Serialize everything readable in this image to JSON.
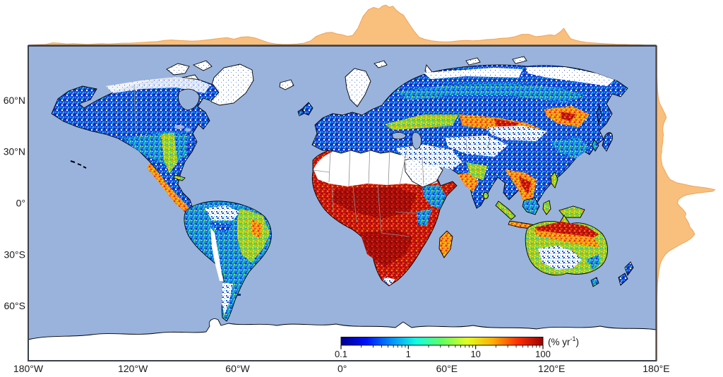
{
  "figure": {
    "type": "global raster map with marginal distribution curves",
    "background_color": "#ffffff"
  },
  "map": {
    "projection": "equirectangular",
    "lon_range": [
      -180,
      180
    ],
    "lat_range": [
      -90,
      90
    ],
    "ocean_color": "#99b3dd",
    "nodata_land_color": "#ffffff",
    "coastline_color": "#000000",
    "country_border_color": "#8f8f8f",
    "frame_color": "#39404c"
  },
  "axes": {
    "lon_ticks": [
      {
        "lon": -180,
        "label": "180°W"
      },
      {
        "lon": -120,
        "label": "120°W"
      },
      {
        "lon": -60,
        "label": "60°W"
      },
      {
        "lon": 0,
        "label": "0°"
      },
      {
        "lon": 60,
        "label": "60°E"
      },
      {
        "lon": 120,
        "label": "120°E"
      },
      {
        "lon": 180,
        "label": "180°E"
      }
    ],
    "lat_ticks": [
      {
        "lat": 60,
        "label": "60°N"
      },
      {
        "lat": 30,
        "label": "30°N"
      },
      {
        "lat": 0,
        "label": "0°"
      },
      {
        "lat": -30,
        "label": "30°S"
      },
      {
        "lat": -60,
        "label": "60°S"
      }
    ]
  },
  "colorbar": {
    "scale": "log",
    "min": 0.1,
    "max": 100,
    "major_ticks": [
      0.1,
      1,
      10,
      100
    ],
    "major_tick_labels": [
      "0.1",
      "1",
      "10",
      "100"
    ],
    "minor_tick_decades": [
      0.1,
      1,
      10
    ],
    "unit_base": "(% yr",
    "unit_exponent": "-1",
    "unit_close": ")",
    "colormap": "jet",
    "gradient": [
      "#00008f",
      "#0010ff",
      "#0090ff",
      "#10ffe0",
      "#60ff60",
      "#e0ff20",
      "#ffb000",
      "#ff3000",
      "#9f0000"
    ]
  },
  "chart_data": [
    {
      "type": "area",
      "name": "longitudinal-distribution",
      "position": "top-margin",
      "axis": "longitude (deg, -180 to 180)",
      "fill": "#f9bf7d",
      "stroke": "#eda55c",
      "peak_longitude_deg": 25,
      "points": [
        [
          -180,
          0
        ],
        [
          -175,
          0.01
        ],
        [
          -170,
          0.02
        ],
        [
          -166,
          0.06
        ],
        [
          -162,
          0.05
        ],
        [
          -158,
          0.03
        ],
        [
          -154,
          0.04
        ],
        [
          -150,
          0.03
        ],
        [
          -146,
          0.02
        ],
        [
          -142,
          0.03
        ],
        [
          -138,
          0.04
        ],
        [
          -134,
          0.03
        ],
        [
          -130,
          0.04
        ],
        [
          -126,
          0.05
        ],
        [
          -122,
          0.05
        ],
        [
          -118,
          0.06
        ],
        [
          -114,
          0.07
        ],
        [
          -110,
          0.08
        ],
        [
          -106,
          0.09
        ],
        [
          -102,
          0.12
        ],
        [
          -98,
          0.13
        ],
        [
          -94,
          0.12
        ],
        [
          -90,
          0.11
        ],
        [
          -86,
          0.1
        ],
        [
          -82,
          0.11
        ],
        [
          -78,
          0.13
        ],
        [
          -74,
          0.15
        ],
        [
          -70,
          0.17
        ],
        [
          -66,
          0.19
        ],
        [
          -62,
          0.15
        ],
        [
          -58,
          0.2
        ],
        [
          -54,
          0.21
        ],
        [
          -50,
          0.18
        ],
        [
          -46,
          0.12
        ],
        [
          -42,
          0.06
        ],
        [
          -38,
          0.03
        ],
        [
          -34,
          0.02
        ],
        [
          -30,
          0.02
        ],
        [
          -26,
          0.03
        ],
        [
          -22,
          0.05
        ],
        [
          -18,
          0.11
        ],
        [
          -15,
          0.22
        ],
        [
          -12,
          0.27
        ],
        [
          -9,
          0.31
        ],
        [
          -6,
          0.32
        ],
        [
          -3,
          0.28
        ],
        [
          0,
          0.26
        ],
        [
          3,
          0.22
        ],
        [
          6,
          0.24
        ],
        [
          9,
          0.42
        ],
        [
          12,
          0.72
        ],
        [
          15,
          0.88
        ],
        [
          18,
          0.94
        ],
        [
          21,
          0.9
        ],
        [
          23,
          0.97
        ],
        [
          25,
          1.0
        ],
        [
          27,
          0.94
        ],
        [
          29,
          0.97
        ],
        [
          31,
          0.87
        ],
        [
          33,
          0.8
        ],
        [
          35,
          0.75
        ],
        [
          38,
          0.55
        ],
        [
          41,
          0.36
        ],
        [
          44,
          0.2
        ],
        [
          47,
          0.15
        ],
        [
          51,
          0.11
        ],
        [
          55,
          0.09
        ],
        [
          59,
          0.08
        ],
        [
          63,
          0.09
        ],
        [
          67,
          0.11
        ],
        [
          71,
          0.12
        ],
        [
          75,
          0.11
        ],
        [
          79,
          0.12
        ],
        [
          83,
          0.14
        ],
        [
          87,
          0.15
        ],
        [
          91,
          0.17
        ],
        [
          95,
          0.18
        ],
        [
          99,
          0.21
        ],
        [
          103,
          0.27
        ],
        [
          107,
          0.27
        ],
        [
          111,
          0.21
        ],
        [
          115,
          0.23
        ],
        [
          119,
          0.26
        ],
        [
          122,
          0.24
        ],
        [
          125,
          0.33
        ],
        [
          127,
          0.42
        ],
        [
          129,
          0.28
        ],
        [
          131,
          0.16
        ],
        [
          134,
          0.12
        ],
        [
          137,
          0.09
        ],
        [
          140,
          0.07
        ],
        [
          143,
          0.06
        ],
        [
          146,
          0.05
        ],
        [
          150,
          0.04
        ],
        [
          154,
          0.03
        ],
        [
          158,
          0.02
        ],
        [
          162,
          0.02
        ],
        [
          166,
          0.01
        ],
        [
          170,
          0.01
        ],
        [
          174,
          0
        ],
        [
          180,
          0
        ]
      ]
    },
    {
      "type": "area",
      "name": "latitudinal-distribution",
      "position": "right-margin",
      "axis": "latitude (deg, 90 to -90)",
      "fill": "#f9bf7d",
      "stroke": "#eda55c",
      "peak_latitude_deg": 8,
      "points": [
        [
          90,
          0
        ],
        [
          80,
          0
        ],
        [
          74,
          0
        ],
        [
          70,
          0.005
        ],
        [
          66,
          0.01
        ],
        [
          62,
          0.02
        ],
        [
          60,
          0.03
        ],
        [
          58,
          0.05
        ],
        [
          56,
          0.08
        ],
        [
          54,
          0.11
        ],
        [
          52,
          0.14
        ],
        [
          50,
          0.16
        ],
        [
          48,
          0.13
        ],
        [
          46,
          0.11
        ],
        [
          44,
          0.1
        ],
        [
          42,
          0.1
        ],
        [
          40,
          0.11
        ],
        [
          38,
          0.1
        ],
        [
          36,
          0.1
        ],
        [
          34,
          0.09
        ],
        [
          32,
          0.08
        ],
        [
          30,
          0.08
        ],
        [
          28,
          0.07
        ],
        [
          26,
          0.07
        ],
        [
          24,
          0.08
        ],
        [
          22,
          0.09
        ],
        [
          20,
          0.12
        ],
        [
          18,
          0.15
        ],
        [
          16,
          0.18
        ],
        [
          14,
          0.22
        ],
        [
          12,
          0.34
        ],
        [
          10,
          0.62
        ],
        [
          9,
          0.85
        ],
        [
          8,
          1.0
        ],
        [
          7,
          0.96
        ],
        [
          6,
          0.7
        ],
        [
          5,
          0.52
        ],
        [
          4,
          0.44
        ],
        [
          3,
          0.4
        ],
        [
          2,
          0.37
        ],
        [
          0,
          0.35
        ],
        [
          -2,
          0.4
        ],
        [
          -4,
          0.46
        ],
        [
          -6,
          0.5
        ],
        [
          -8,
          0.48
        ],
        [
          -10,
          0.52
        ],
        [
          -12,
          0.55
        ],
        [
          -14,
          0.57
        ],
        [
          -16,
          0.62
        ],
        [
          -18,
          0.65
        ],
        [
          -20,
          0.6
        ],
        [
          -22,
          0.52
        ],
        [
          -24,
          0.4
        ],
        [
          -26,
          0.3
        ],
        [
          -28,
          0.2
        ],
        [
          -30,
          0.14
        ],
        [
          -32,
          0.1
        ],
        [
          -34,
          0.07
        ],
        [
          -36,
          0.05
        ],
        [
          -38,
          0.04
        ],
        [
          -40,
          0.03
        ],
        [
          -43,
          0.02
        ],
        [
          -46,
          0.01
        ],
        [
          -50,
          0.005
        ],
        [
          -56,
          0
        ],
        [
          -90,
          0
        ]
      ]
    },
    {
      "type": "heatmap",
      "name": "global-map-values",
      "unit": "% yr-1",
      "scale": "log",
      "domain": [
        0.1,
        100
      ],
      "colormap": "jet",
      "hotspot_regions": [
        "sub-Saharan savanna belt",
        "southern Africa",
        "Madagascar",
        "northern Australia",
        "mainland Southeast Asia",
        "Eurasian steppe (Kazakhstan/Ukraine)",
        "Mexico and Central America",
        "eastern Brazil cerrado"
      ],
      "low_value_regions": [
        "boreal North America",
        "eastern United States",
        "Europe",
        "Amazon basin",
        "China lowlands",
        "New Zealand",
        "Japan"
      ],
      "no_data_regions": [
        "Sahara",
        "Arabian Peninsula",
        "Iranian plateau",
        "Central Asia deserts",
        "Tibetan Plateau",
        "Greenland",
        "Antarctica",
        "Patagonia fringe",
        "Australian interior deserts"
      ]
    }
  ]
}
